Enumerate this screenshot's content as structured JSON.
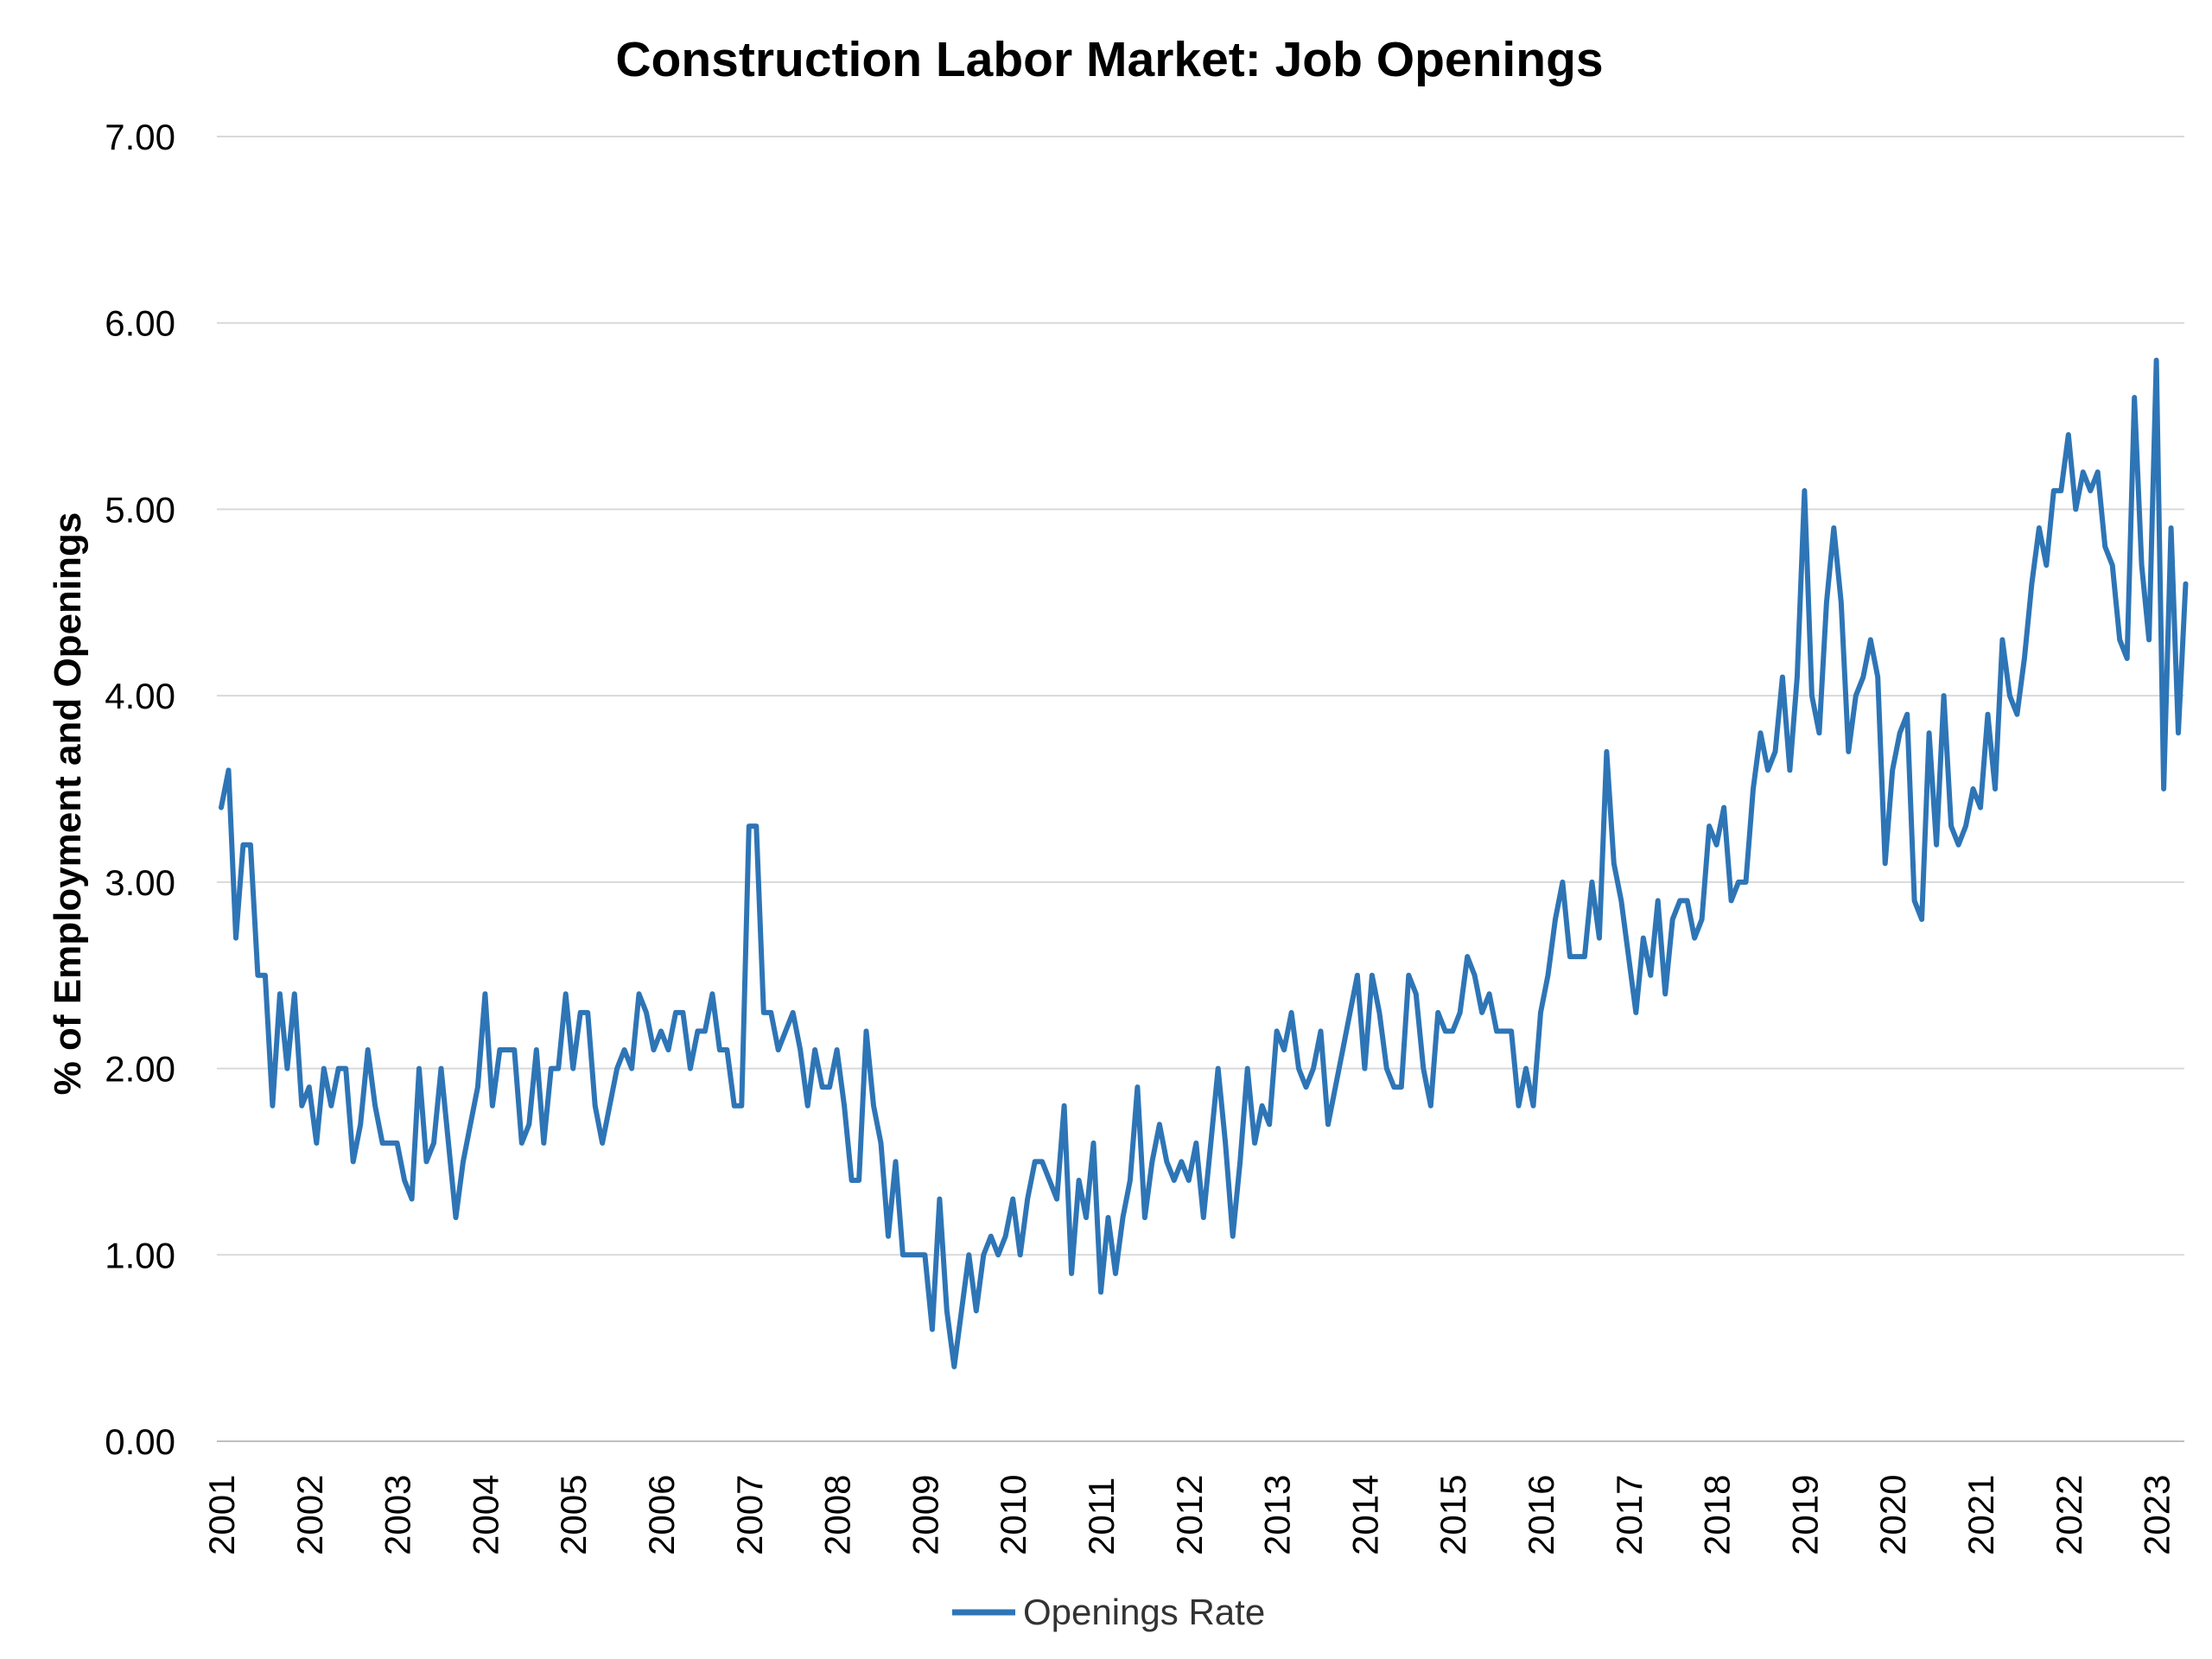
{
  "chart_data": {
    "type": "line",
    "title": "Construction Labor Market: Job Openings",
    "ylabel": "% of Employment and Openings",
    "xlabel": "",
    "ylim": [
      0,
      7
    ],
    "yticks": [
      "0.00",
      "1.00",
      "2.00",
      "3.00",
      "4.00",
      "5.00",
      "6.00",
      "7.00"
    ],
    "xticks": [
      "2001",
      "2002",
      "2003",
      "2004",
      "2005",
      "2006",
      "2007",
      "2008",
      "2009",
      "2010",
      "2011",
      "2012",
      "2013",
      "2014",
      "2015",
      "2016",
      "2017",
      "2018",
      "2019",
      "2020",
      "2021",
      "2022",
      "2023"
    ],
    "grid": "horizontal",
    "legend_position": "bottom",
    "x_frequency": "monthly",
    "x_start": "2001-01",
    "colors": {
      "series": "#2e75b6"
    },
    "series": [
      {
        "name": "Openings Rate",
        "values": [
          3.4,
          3.6,
          2.7,
          3.2,
          3.2,
          2.5,
          2.5,
          1.8,
          2.4,
          2.0,
          2.4,
          1.8,
          1.9,
          1.6,
          2.0,
          1.8,
          2.0,
          2.0,
          1.5,
          1.7,
          2.1,
          1.8,
          1.6,
          1.6,
          1.6,
          1.4,
          1.3,
          2.0,
          1.5,
          1.6,
          2.0,
          1.6,
          1.2,
          1.5,
          1.7,
          1.9,
          2.4,
          1.8,
          2.1,
          2.1,
          2.1,
          1.6,
          1.7,
          2.1,
          1.6,
          2.0,
          2.0,
          2.4,
          2.0,
          2.3,
          2.3,
          1.8,
          1.6,
          1.8,
          2.0,
          2.1,
          2.0,
          2.4,
          2.3,
          2.1,
          2.2,
          2.1,
          2.3,
          2.3,
          2.0,
          2.2,
          2.2,
          2.4,
          2.1,
          2.1,
          1.8,
          1.8,
          3.3,
          3.3,
          2.3,
          2.3,
          2.1,
          2.2,
          2.3,
          2.1,
          1.8,
          2.1,
          1.9,
          1.9,
          2.1,
          1.8,
          1.4,
          1.4,
          2.2,
          1.8,
          1.6,
          1.1,
          1.5,
          1.0,
          1.0,
          1.0,
          1.0,
          0.6,
          1.3,
          0.7,
          0.4,
          0.7,
          1.0,
          0.7,
          1.0,
          1.1,
          1.0,
          1.1,
          1.3,
          1.0,
          1.3,
          1.5,
          1.5,
          1.4,
          1.3,
          1.8,
          0.9,
          1.4,
          1.2,
          1.6,
          0.8,
          1.2,
          0.9,
          1.2,
          1.4,
          1.9,
          1.2,
          1.5,
          1.7,
          1.5,
          1.4,
          1.5,
          1.4,
          1.6,
          1.2,
          1.6,
          2.0,
          1.6,
          1.1,
          1.5,
          2.0,
          1.6,
          1.8,
          1.7,
          2.2,
          2.1,
          2.3,
          2.0,
          1.9,
          2.0,
          2.2,
          1.7,
          1.9,
          2.1,
          2.3,
          2.5,
          2.0,
          2.5,
          2.3,
          2.0,
          1.9,
          1.9,
          2.5,
          2.4,
          2.0,
          1.8,
          2.3,
          2.2,
          2.2,
          2.3,
          2.6,
          2.5,
          2.3,
          2.4,
          2.2,
          2.2,
          2.2,
          1.8,
          2.0,
          1.8,
          2.3,
          2.5,
          2.8,
          3.0,
          2.6,
          2.6,
          2.6,
          3.0,
          2.7,
          3.7,
          3.1,
          2.9,
          2.6,
          2.3,
          2.7,
          2.5,
          2.9,
          2.4,
          2.8,
          2.9,
          2.9,
          2.7,
          2.8,
          3.3,
          3.2,
          3.4,
          2.9,
          3.0,
          3.0,
          3.5,
          3.8,
          3.6,
          3.7,
          4.1,
          3.6,
          4.1,
          5.1,
          4.0,
          3.8,
          4.5,
          4.9,
          4.5,
          3.7,
          4.0,
          4.1,
          4.3,
          4.1,
          3.1,
          3.6,
          3.8,
          3.9,
          2.9,
          2.8,
          3.8,
          3.2,
          4.0,
          3.3,
          3.2,
          3.3,
          3.5,
          3.4,
          3.9,
          3.5,
          4.3,
          4.0,
          3.9,
          4.2,
          4.6,
          4.9,
          4.7,
          5.1,
          5.1,
          5.4,
          5.0,
          5.2,
          5.1,
          5.2,
          4.8,
          4.7,
          4.3,
          4.2,
          5.6,
          4.7,
          4.3,
          5.8,
          3.5,
          4.9,
          3.8,
          4.6
        ]
      }
    ]
  }
}
